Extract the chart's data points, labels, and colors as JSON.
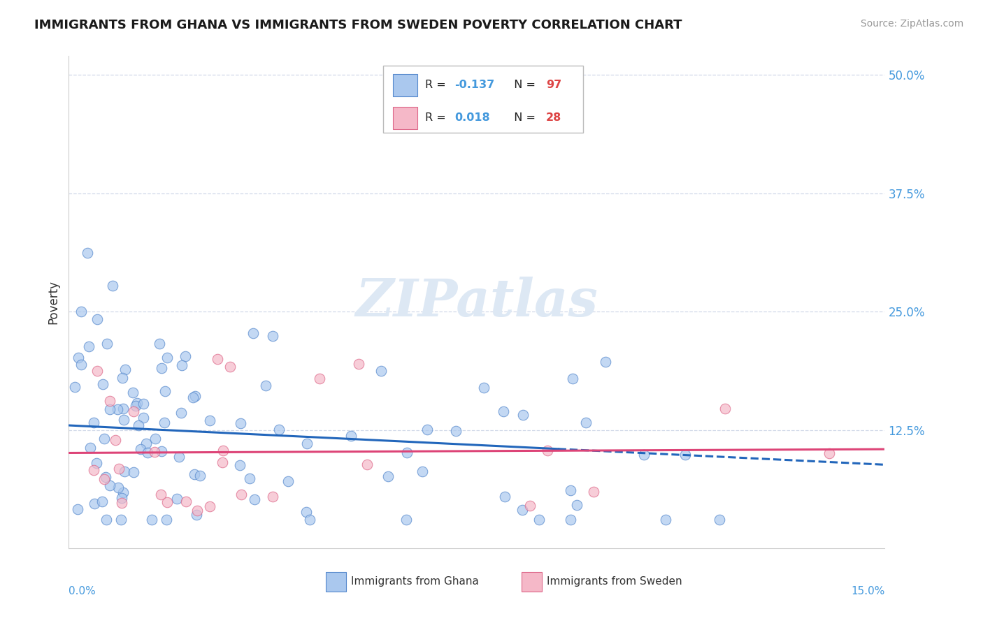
{
  "title": "IMMIGRANTS FROM GHANA VS IMMIGRANTS FROM SWEDEN POVERTY CORRELATION CHART",
  "source": "Source: ZipAtlas.com",
  "ylabel": "Poverty",
  "xlim": [
    0.0,
    0.15
  ],
  "ylim": [
    0.0,
    0.52
  ],
  "ghana_color": "#aac8ee",
  "ghana_edge": "#5588cc",
  "sweden_color": "#f5b8c8",
  "sweden_edge": "#dd6688",
  "ghana_line_color": "#2266bb",
  "sweden_line_color": "#dd4477",
  "watermark": "ZIPatlas",
  "ghana_R": -0.137,
  "ghana_N": 97,
  "sweden_R": 0.018,
  "sweden_N": 28,
  "ytick_color": "#4499dd",
  "xtick_color": "#4499dd",
  "legend_R_color": "#4499dd",
  "legend_N_color": "#dd4444",
  "grid_color": "#d0d8e8",
  "spine_color": "#cccccc"
}
